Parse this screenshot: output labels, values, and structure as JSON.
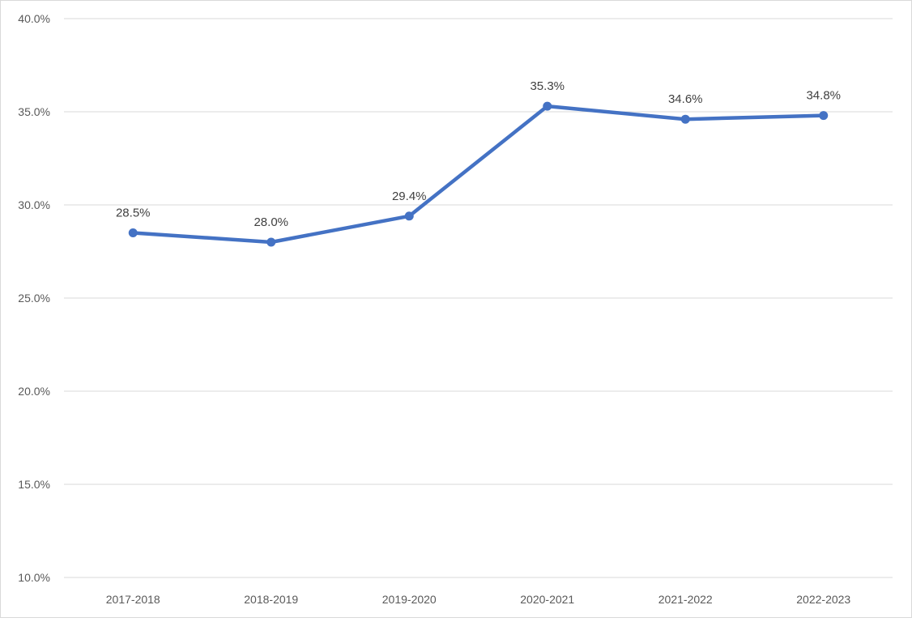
{
  "chart_data": {
    "type": "line",
    "title": "",
    "xlabel": "",
    "ylabel": "",
    "categories": [
      "2017-2018",
      "2018-2019",
      "2019-2020",
      "2020-2021",
      "2021-2022",
      "2022-2023"
    ],
    "series": [
      {
        "values": [
          28.5,
          28.0,
          29.4,
          35.3,
          34.6,
          34.8
        ],
        "data_labels": [
          "28.5%",
          "28.0%",
          "29.4%",
          "35.3%",
          "34.6%",
          "34.8%"
        ],
        "color": "#4472C4",
        "markers": true
      }
    ],
    "ylim": [
      10,
      40
    ],
    "y_ticks": [
      10,
      15,
      20,
      25,
      30,
      35,
      40
    ],
    "y_tick_labels": [
      "10.0%",
      "15.0%",
      "20.0%",
      "25.0%",
      "30.0%",
      "35.0%",
      "40.0%"
    ],
    "grid": "horizontal",
    "legend": "none"
  },
  "colors": {
    "line": "#4472C4",
    "grid": "#D9D9D9",
    "frame": "#D9D9D9",
    "text": "#595959"
  }
}
